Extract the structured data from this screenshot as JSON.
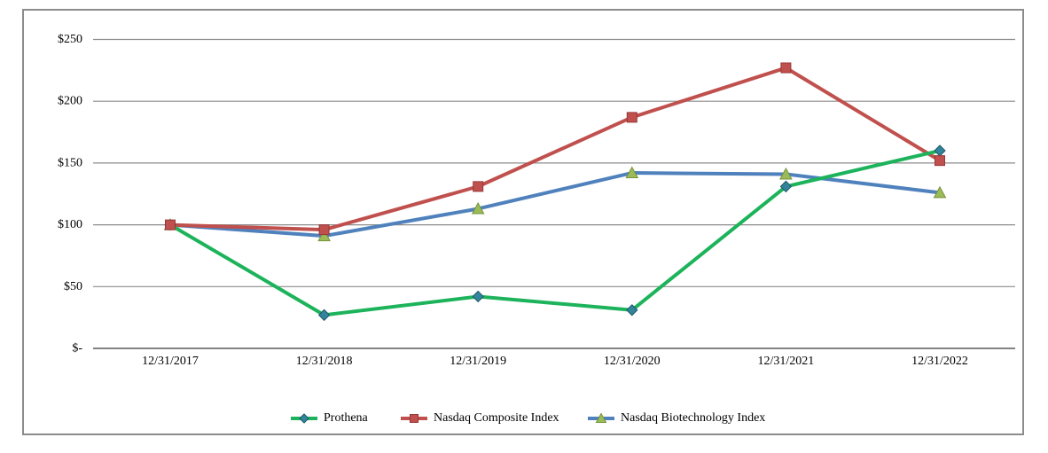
{
  "chart_data": {
    "type": "line",
    "title": "",
    "xlabel": "",
    "ylabel": "",
    "categories": [
      "12/31/2017",
      "12/31/2018",
      "12/31/2019",
      "12/31/2020",
      "12/31/2021",
      "12/31/2022"
    ],
    "series": [
      {
        "name": "Prothena",
        "values": [
          100,
          27,
          42,
          31,
          131,
          160
        ],
        "line_color": "#1cb35b",
        "marker": "diamond",
        "marker_color": "#31849b",
        "marker_edge": "#205867"
      },
      {
        "name": "Nasdaq Composite Index",
        "values": [
          100,
          96,
          131,
          187,
          227,
          152
        ],
        "line_color": "#c0504d",
        "marker": "square",
        "marker_color": "#c0504d",
        "marker_edge": "#953735"
      },
      {
        "name": "Nasdaq Biotechnology Index",
        "values": [
          100,
          91,
          113,
          142,
          141,
          126
        ],
        "line_color": "#4f81bd",
        "marker": "triangle",
        "marker_color": "#9bbb59",
        "marker_edge": "#77933c"
      }
    ],
    "y_ticks": [
      {
        "label": "$250",
        "value": 250
      },
      {
        "label": "$200",
        "value": 200
      },
      {
        "label": "$150",
        "value": 150
      },
      {
        "label": "$100",
        "value": 100
      },
      {
        "label": "$50",
        "value": 50
      },
      {
        "label": "$-",
        "value": 0
      }
    ],
    "ylim": [
      0,
      250
    ],
    "grid": true,
    "legend_position": "bottom",
    "colors": {
      "gridline": "#8c8c8c",
      "axis": "#595959",
      "frame_border": "#8c8c8c",
      "background": "#ffffff",
      "text": "#000000"
    }
  }
}
